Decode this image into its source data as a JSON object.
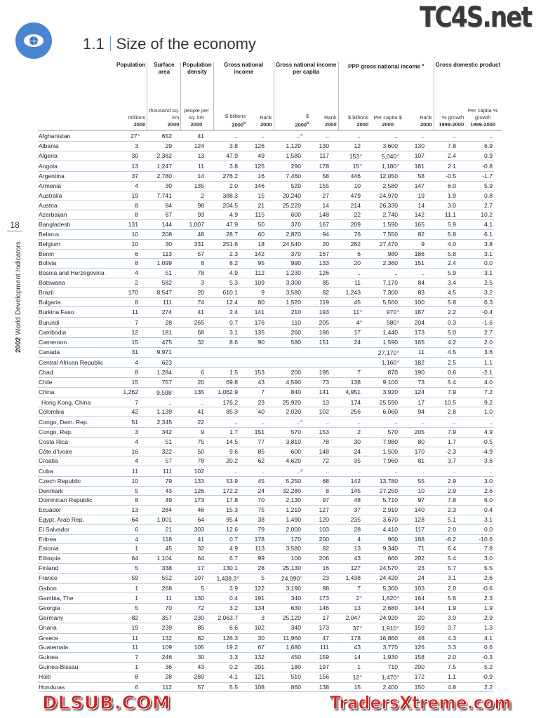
{
  "page": {
    "section_number": "1.1",
    "title": "Size of the economy",
    "page_number": "18",
    "book_year": "2002",
    "book_title": "World Development Indicators",
    "logo_icon": "eye-globe-icon",
    "accent_color": "#4a86d0"
  },
  "watermarks": {
    "top": "TC4S.net",
    "middle": "DLSUB.COM",
    "bottom": "TradersXtreme.com"
  },
  "table": {
    "groups": [
      {
        "label": "Population"
      },
      {
        "label": "Surface area"
      },
      {
        "label": "Population density"
      },
      {
        "label": "Gross national income"
      },
      {
        "label": "Gross national income per capita"
      },
      {
        "label": "PPP gross national income",
        "note": "a"
      },
      {
        "label": "Gross domestic product"
      }
    ],
    "columns": [
      {
        "unit": "millions",
        "year": "2000"
      },
      {
        "unit": "thousand sq. km",
        "year": "2000"
      },
      {
        "unit": "people per sq. km",
        "year": "2000"
      },
      {
        "unit": "$ billions",
        "year": "2000",
        "year_note": "b"
      },
      {
        "unit": "Rank",
        "year": "2000"
      },
      {
        "unit": "$",
        "year": "2000",
        "year_note": "b"
      },
      {
        "unit": "Rank",
        "year": "2000"
      },
      {
        "unit": "$ billions",
        "year": "2000"
      },
      {
        "unit": "Per capita $",
        "year": "2000"
      },
      {
        "unit": "Rank",
        "year": "2000"
      },
      {
        "unit": "% growth",
        "year": "1999-2000"
      },
      {
        "unit": "Per capita % growth",
        "year": "1999-2000"
      }
    ],
    "rows": [
      {
        "country": "Afghanistan",
        "cells": [
          {
            "v": "27",
            "note": "c"
          },
          "652",
          "41",
          "..",
          "..",
          {
            "v": "..",
            "note": "d"
          },
          "..",
          "..",
          "..",
          "..",
          "..",
          ".."
        ]
      },
      {
        "country": "Albania",
        "cells": [
          "3",
          "29",
          "124",
          "3.8",
          "126",
          "1,120",
          "130",
          "12",
          "3,600",
          "130",
          "7.8",
          "6.9"
        ]
      },
      {
        "country": "Algeria",
        "cells": [
          "30",
          "2,382",
          "13",
          "47.9",
          "49",
          "1,580",
          "117",
          {
            "v": "153",
            "note": "e"
          },
          {
            "v": "5,040",
            "note": "e"
          },
          "107",
          "2.4",
          "0.9"
        ]
      },
      {
        "country": "Angola",
        "cells": [
          "13",
          "1,247",
          "11",
          "3.8",
          "125",
          "290",
          "178",
          {
            "v": "15",
            "note": "e"
          },
          {
            "v": "1,180",
            "note": "e"
          },
          "181",
          "2.1",
          "-0.8"
        ]
      },
      {
        "country": "Argentina",
        "cells": [
          "37",
          "2,780",
          "14",
          "276.2",
          "16",
          "7,460",
          "58",
          "446",
          "12,050",
          "58",
          "-0.5",
          "-1.7"
        ]
      },
      {
        "country": "Armenia",
        "cells": [
          "4",
          "30",
          "135",
          "2.0",
          "146",
          "520",
          "155",
          "10",
          "2,580",
          "147",
          "6.0",
          "5.9"
        ]
      },
      {
        "country": "Australia",
        "cells": [
          "19",
          "7,741",
          "2",
          "388.3",
          "15",
          "20,240",
          "27",
          "479",
          "24,970",
          "19",
          "1.9",
          "0.8"
        ]
      },
      {
        "country": "Austria",
        "cells": [
          "8",
          "84",
          "98",
          "204.5",
          "21",
          "25,220",
          "14",
          "214",
          "26,330",
          "14",
          "3.0",
          "2.7"
        ]
      },
      {
        "country": "Azerbaijan",
        "cells": [
          "8",
          "87",
          "93",
          "4.9",
          "115",
          "600",
          "148",
          "22",
          "2,740",
          "142",
          "11.1",
          "10.2"
        ]
      },
      {
        "country": "Bangladesh",
        "cells": [
          "131",
          "144",
          "1,007",
          "47.9",
          "50",
          "370",
          "167",
          "209",
          "1,590",
          "165",
          "5.9",
          "4.1"
        ]
      },
      {
        "country": "Belarus",
        "cells": [
          "10",
          "208",
          "48",
          "28.7",
          "60",
          "2,870",
          "94",
          "76",
          "7,550",
          "82",
          "5.8",
          "6.1"
        ]
      },
      {
        "country": "Belgium",
        "cells": [
          "10",
          "30",
          "331",
          "251.6",
          "18",
          "24,540",
          "20",
          "282",
          "27,470",
          "9",
          "4.0",
          "3.8"
        ]
      },
      {
        "country": "Benin",
        "cells": [
          "6",
          "113",
          "57",
          "2.3",
          "142",
          "370",
          "167",
          "6",
          "980",
          "186",
          "5.8",
          "3.1"
        ]
      },
      {
        "country": "Bolivia",
        "cells": [
          "8",
          "1,099",
          "8",
          "8.2",
          "95",
          "990",
          "133",
          "20",
          "2,360",
          "151",
          "2.4",
          "0.0"
        ]
      },
      {
        "country": "Bosnia and Herzegovina",
        "cells": [
          "4",
          "51",
          "78",
          "4.9",
          "112",
          "1,230",
          "126",
          "..",
          "..",
          "..",
          "5.9",
          "3.1"
        ]
      },
      {
        "country": "Botswana",
        "cells": [
          "2",
          "582",
          "3",
          "5.3",
          "109",
          "3,300",
          "85",
          "11",
          "7,170",
          "84",
          "3.4",
          "2.5"
        ]
      },
      {
        "country": "Brazil",
        "cells": [
          "170",
          "8,547",
          "20",
          "610.1",
          "9",
          "3,580",
          "82",
          "1,243",
          "7,300",
          "83",
          "4.5",
          "3.2"
        ]
      },
      {
        "country": "Bulgaria",
        "cells": [
          "8",
          "111",
          "74",
          "12.4",
          "80",
          "1,520",
          "119",
          "45",
          "5,560",
          "100",
          "5.8",
          "6.3"
        ]
      },
      {
        "country": "Burkina Faso",
        "cells": [
          "11",
          "274",
          "41",
          "2.4",
          "141",
          "210",
          "193",
          {
            "v": "11",
            "note": "e"
          },
          {
            "v": "970",
            "note": "e"
          },
          "187",
          "2.2",
          "-0.4"
        ]
      },
      {
        "country": "Burundi",
        "cells": [
          "7",
          "28",
          "265",
          "0.7",
          "176",
          "110",
          "205",
          {
            "v": "4",
            "note": "e"
          },
          {
            "v": "580",
            "note": "e"
          },
          "204",
          "0.3",
          "-1.6"
        ]
      },
      {
        "country": "Cambodia",
        "cells": [
          "12",
          "181",
          "68",
          "3.1",
          "135",
          "260",
          "186",
          "17",
          "1,440",
          "173",
          "5.0",
          "2.7"
        ]
      },
      {
        "country": "Cameroon",
        "cells": [
          "15",
          "475",
          "32",
          "8.6",
          "90",
          "580",
          "151",
          "24",
          "1,590",
          "165",
          "4.2",
          "2.0"
        ]
      },
      {
        "country": "Canada",
        "cells": [
          "31",
          "9,971",
          "",
          "",
          "",
          "",
          "",
          "",
          {
            "v": "27,170",
            "note": "e"
          },
          "11",
          "4.5",
          "3.6"
        ]
      },
      {
        "country": "Central African Republic",
        "cells": [
          "4",
          "623",
          "",
          "",
          "",
          "",
          "",
          "",
          {
            "v": "1,160",
            "note": "e"
          },
          "182",
          "2.5",
          "1.1"
        ]
      },
      {
        "country": "Chad",
        "cells": [
          "8",
          "1,284",
          "6",
          "1.5",
          "153",
          "200",
          "195",
          "7",
          "870",
          "190",
          "0.6",
          "-2.1"
        ]
      },
      {
        "country": "Chile",
        "cells": [
          "15",
          "757",
          "20",
          "69.8",
          "43",
          "4,590",
          "73",
          "138",
          "9,100",
          "73",
          "5.4",
          "4.0"
        ]
      },
      {
        "country": "China",
        "cells": [
          "1,262",
          {
            "v": "9,598",
            "note": "f"
          },
          "135",
          "1,062.9",
          "7",
          "840",
          "141",
          "4,951",
          "3,920",
          "124",
          "7.9",
          "7.2"
        ]
      },
      {
        "country": " Hong Kong, China",
        "cells": [
          "7",
          "..",
          "..",
          "176.2",
          "23",
          "25,920",
          "13",
          "174",
          "25,590",
          "17",
          "10.5",
          "9.2"
        ]
      },
      {
        "country": "Colombia",
        "cells": [
          "42",
          "1,139",
          "41",
          "85.3",
          "40",
          "2,020",
          "102",
          "256",
          "6,060",
          "94",
          "2.8",
          "1.0"
        ]
      },
      {
        "country": "Congo, Dem. Rep.",
        "cells": [
          "51",
          "2,345",
          "22",
          "..",
          "..",
          {
            "v": "..",
            "note": "d"
          },
          "..",
          "..",
          "..",
          "..",
          "..",
          ".."
        ]
      },
      {
        "country": "Congo, Rep.",
        "cells": [
          "3",
          "342",
          "9",
          "1.7",
          "151",
          "570",
          "153",
          "2",
          "570",
          "205",
          "7.9",
          "4.9"
        ]
      },
      {
        "country": "Costa Rica",
        "cells": [
          "4",
          "51",
          "75",
          "14.5",
          "77",
          "3,810",
          "78",
          "30",
          "7,980",
          "80",
          "1.7",
          "-0.5"
        ]
      },
      {
        "country": "Côte d'Ivoire",
        "cells": [
          "16",
          "322",
          "50",
          "9.6",
          "85",
          "600",
          "148",
          "24",
          "1,500",
          "170",
          "-2.3",
          "-4.9"
        ]
      },
      {
        "country": "Croatia",
        "cells": [
          "4",
          "57",
          "78",
          "20.2",
          "62",
          "4,620",
          "72",
          "35",
          "7,960",
          "81",
          "3.7",
          "3.6"
        ]
      },
      {
        "country": "Cuba",
        "cells": [
          "11",
          "111",
          "102",
          "..",
          "..",
          {
            "v": "..",
            "note": "g"
          },
          "..",
          "..",
          "..",
          "..",
          "..",
          ".."
        ]
      },
      {
        "country": "Czech Republic",
        "cells": [
          "10",
          "79",
          "133",
          "53.9",
          "45",
          "5,250",
          "68",
          "142",
          "13,780",
          "55",
          "2.9",
          "3.0"
        ]
      },
      {
        "country": "Denmark",
        "cells": [
          "5",
          "43",
          "126",
          "172.2",
          "24",
          "32,280",
          "8",
          "145",
          "27,250",
          "10",
          "2.9",
          "2.6"
        ]
      },
      {
        "country": "Dominican Republic",
        "cells": [
          "8",
          "49",
          "173",
          "17.8",
          "70",
          "2,130",
          "97",
          "48",
          "5,710",
          "97",
          "7.8",
          "6.0"
        ]
      },
      {
        "country": "Ecuador",
        "cells": [
          "13",
          "284",
          "46",
          "15.3",
          "75",
          "1,210",
          "127",
          "37",
          "2,910",
          "140",
          "2.3",
          "0.4"
        ]
      },
      {
        "country": "Egypt, Arab Rep.",
        "cells": [
          "64",
          "1,001",
          "64",
          "95.4",
          "38",
          "1,490",
          "120",
          "235",
          "3,670",
          "128",
          "5.1",
          "3.1"
        ]
      },
      {
        "country": "El Salvador",
        "cells": [
          "6",
          "21",
          "303",
          "12.6",
          "79",
          "2,000",
          "103",
          "28",
          "4,410",
          "117",
          "2.0",
          "0.0"
        ]
      },
      {
        "country": "Eritrea",
        "cells": [
          "4",
          "118",
          "41",
          "0.7",
          "178",
          "170",
          "200",
          "4",
          "960",
          "188",
          "-8.2",
          "-10.6"
        ]
      },
      {
        "country": "Estonia",
        "cells": [
          "1",
          "45",
          "32",
          "4.9",
          "113",
          "3,580",
          "82",
          "13",
          "9,340",
          "71",
          "6.4",
          "7.8"
        ]
      },
      {
        "country": "Ethiopia",
        "cells": [
          "64",
          "1,104",
          "64",
          "6.7",
          "99",
          "100",
          "206",
          "43",
          "660",
          "202",
          "5.4",
          "3.0"
        ]
      },
      {
        "country": "Finland",
        "cells": [
          "5",
          "338",
          "17",
          "130.1",
          "28",
          "25,130",
          "16",
          "127",
          "24,570",
          "23",
          "5.7",
          "5.5"
        ]
      },
      {
        "country": "France",
        "cells": [
          "59",
          "552",
          "107",
          {
            "v": "1,438.3",
            "note": "h"
          },
          "5",
          {
            "v": "24,090",
            "note": "h"
          },
          "23",
          "1,438",
          "24,420",
          "24",
          "3.1",
          "2.6"
        ]
      },
      {
        "country": "Gabon",
        "cells": [
          "1",
          "268",
          "5",
          "3.9",
          "122",
          "3,190",
          "88",
          "7",
          "5,360",
          "103",
          "2.0",
          "-0.6"
        ]
      },
      {
        "country": "Gambia, The",
        "cells": [
          "1",
          "11",
          "130",
          "0.4",
          "191",
          "340",
          "173",
          {
            "v": "2",
            "note": "e"
          },
          {
            "v": "1,620",
            "note": "e"
          },
          "164",
          "5.6",
          "2.3"
        ]
      },
      {
        "country": "Georgia",
        "cells": [
          "5",
          "70",
          "72",
          "3.2",
          "134",
          "630",
          "146",
          "13",
          "2,680",
          "144",
          "1.9",
          "1.9"
        ]
      },
      {
        "country": "Germany",
        "cells": [
          "82",
          "357",
          "230",
          "2,063.7",
          "3",
          "25,120",
          "17",
          "2,047",
          "24,920",
          "20",
          "3.0",
          "2.9"
        ]
      },
      {
        "country": "Ghana",
        "cells": [
          "19",
          "239",
          "85",
          "6.6",
          "102",
          "340",
          "173",
          {
            "v": "37",
            "note": "e"
          },
          {
            "v": "1,910",
            "note": "e"
          },
          "159",
          "3.7",
          "1.3"
        ]
      },
      {
        "country": "Greece",
        "cells": [
          "11",
          "132",
          "82",
          "126.3",
          "30",
          "11,960",
          "47",
          "178",
          "16,860",
          "48",
          "4.3",
          "4.1"
        ]
      },
      {
        "country": "Guatemala",
        "cells": [
          "11",
          "109",
          "105",
          "19.2",
          "67",
          "1,680",
          "111",
          "43",
          "3,770",
          "126",
          "3.3",
          "0.6"
        ]
      },
      {
        "country": "Guinea",
        "cells": [
          "7",
          "246",
          "30",
          "3.3",
          "132",
          "450",
          "159",
          "14",
          "1,930",
          "158",
          "2.0",
          "-0.3"
        ]
      },
      {
        "country": "Guinea-Bissau",
        "cells": [
          "1",
          "36",
          "43",
          "0.2",
          "201",
          "180",
          "197",
          "1",
          "710",
          "200",
          "7.5",
          "5.2"
        ]
      },
      {
        "country": "Haiti",
        "cells": [
          "8",
          "28",
          "289",
          "4.1",
          "121",
          "510",
          "156",
          {
            "v": "12",
            "note": "e"
          },
          {
            "v": "1,470",
            "note": "e"
          },
          "172",
          "1.1",
          "-0.9"
        ]
      },
      {
        "country": "Honduras",
        "cells": [
          "6",
          "112",
          "57",
          "5.5",
          "108",
          "860",
          "138",
          "15",
          "2,400",
          "150",
          "4.8",
          "2.2"
        ]
      }
    ]
  }
}
